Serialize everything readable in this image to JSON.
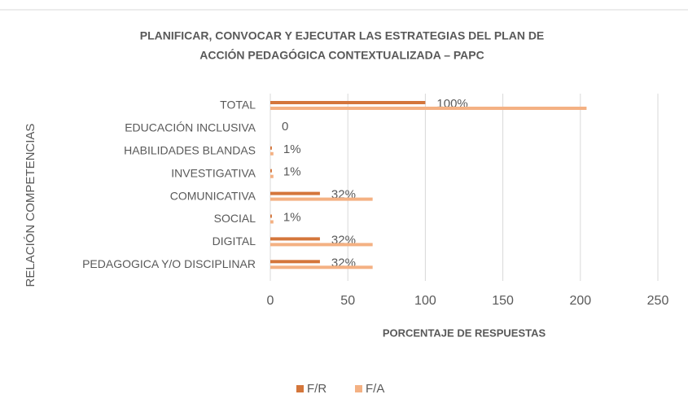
{
  "chart_data": {
    "type": "hbar",
    "title": "PLANIFICAR, CONVOCAR Y EJECUTAR LAS ESTRATEGIAS DEL PLAN DE",
    "subtitle": "ACCIÓN PEDAGÓGICA CONTEXTUALIZADA – PAPC",
    "x_label": "PORCENTAJE DE RESPUESTAS",
    "y_label": "RELACIÓN COMPETENCIAS",
    "categories": [
      "TOTAL",
      "EDUCACIÓN INCLUSIVA",
      "HABILIDADES BLANDAS",
      "INVESTIGATIVA",
      "COMUNICATIVA",
      "SOCIAL",
      "DIGITAL",
      "PEDAGOGICA Y/O DISCIPLINAR"
    ],
    "series": [
      {
        "name": "F/R",
        "color": "#d4763b",
        "values": [
          100,
          0,
          1,
          1,
          32,
          1,
          32,
          32
        ],
        "value_labels": [
          "100%",
          "0",
          "1%",
          "1%",
          "32%",
          "1%",
          "32%",
          "32%"
        ]
      },
      {
        "name": "F/A",
        "color": "#f4b183",
        "values": [
          204,
          0,
          2,
          2,
          66,
          2,
          66,
          66
        ]
      }
    ],
    "xlim": [
      0,
      250
    ],
    "xticks": [
      0,
      50,
      100,
      150,
      200,
      250
    ],
    "grid": true,
    "legend": "bottom"
  }
}
